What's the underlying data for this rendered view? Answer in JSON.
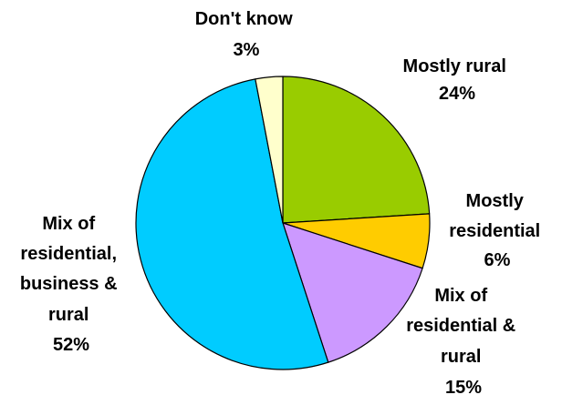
{
  "chart_data": {
    "type": "pie",
    "title": "",
    "start_angle_deg": 0,
    "direction": "clockwise",
    "slices": [
      {
        "label_lines": [
          "Mostly rural"
        ],
        "value_label": "24%",
        "value": 24,
        "color": "#99cc00"
      },
      {
        "label_lines": [
          "Mostly",
          "residential"
        ],
        "value_label": "6%",
        "value": 6,
        "color": "#ffcc00"
      },
      {
        "label_lines": [
          "Mix of",
          "residential &",
          "rural"
        ],
        "value_label": "15%",
        "value": 15,
        "color": "#cc99ff"
      },
      {
        "label_lines": [
          "Mix of",
          "residential,",
          "business &",
          "rural"
        ],
        "value_label": "52%",
        "value": 52,
        "color": "#00ccff"
      },
      {
        "label_lines": [
          "Don't know"
        ],
        "value_label": "3%",
        "value": 3,
        "color": "#ffffcc"
      }
    ]
  }
}
